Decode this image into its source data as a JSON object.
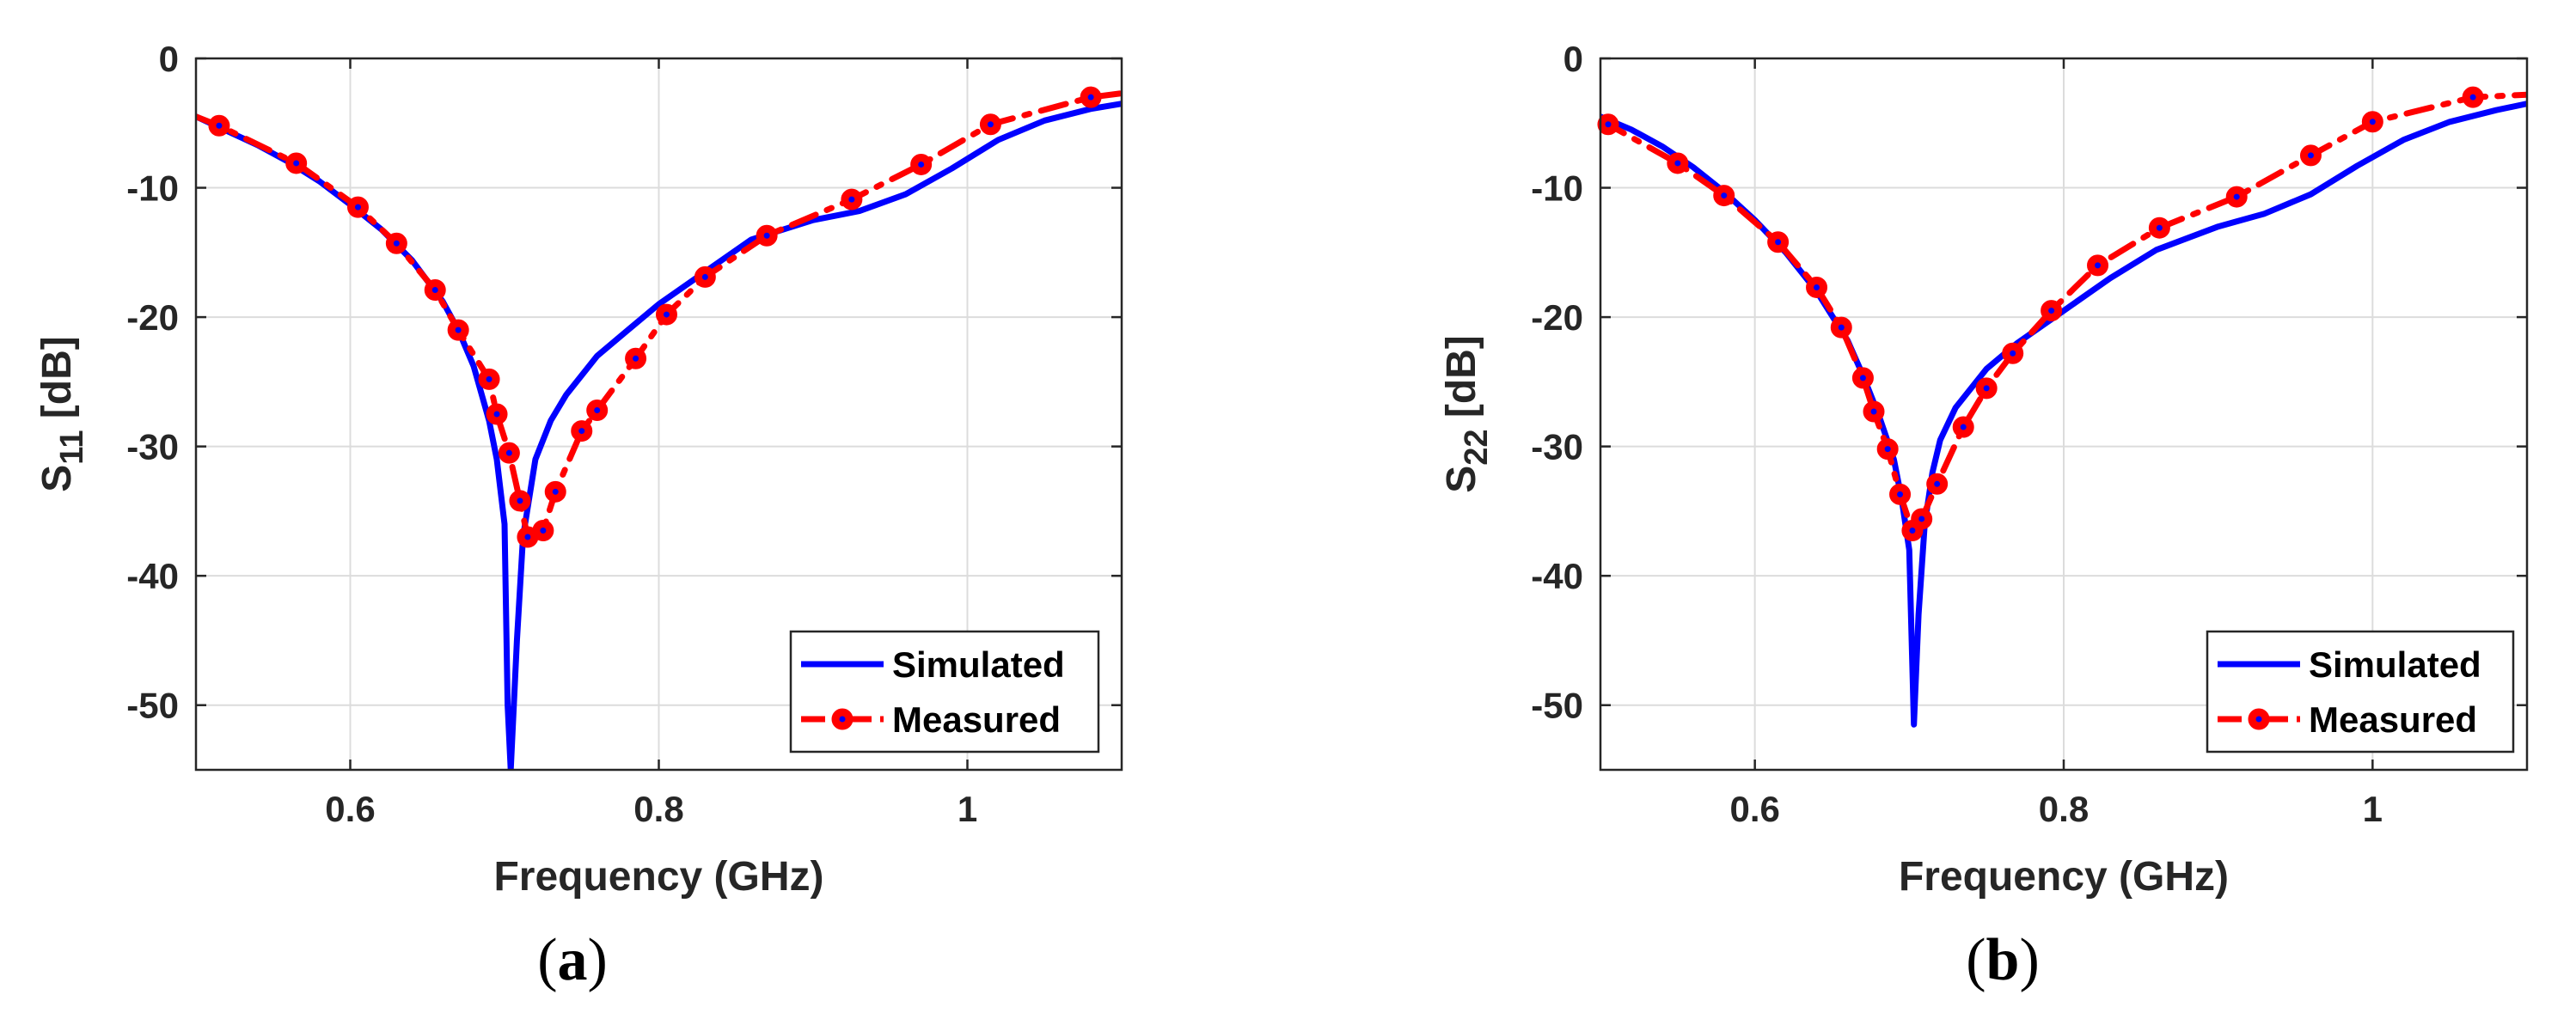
{
  "chart_data": [
    {
      "type": "line",
      "panel": "a",
      "caption": {
        "open": "(",
        "letter": "a",
        "close": ")"
      },
      "xlabel": "Frequency (GHz)",
      "ylabel": {
        "base": "S",
        "sub": "11",
        "unit": " [dB]"
      },
      "xlim": [
        0.5,
        1.1
      ],
      "ylim": [
        -55,
        0
      ],
      "xticks": [
        0.6,
        0.8,
        1.0
      ],
      "xtick_labels": [
        "0.6",
        "0.8",
        "1"
      ],
      "yticks": [
        0,
        -10,
        -20,
        -30,
        -40,
        -50
      ],
      "ytick_labels": [
        "0",
        "-10",
        "-20",
        "-30",
        "-40",
        "-50"
      ],
      "grid": true,
      "legend": "bottom-right",
      "series": [
        {
          "name": "Simulated",
          "color": "#0000ff",
          "style": "solid",
          "marker": "none",
          "x": [
            0.5,
            0.52,
            0.54,
            0.56,
            0.58,
            0.6,
            0.62,
            0.64,
            0.66,
            0.67,
            0.68,
            0.69,
            0.695,
            0.7,
            0.702,
            0.704,
            0.708,
            0.712,
            0.72,
            0.73,
            0.74,
            0.76,
            0.78,
            0.8,
            0.83,
            0.86,
            0.9,
            0.93,
            0.96,
            0.99,
            1.02,
            1.05,
            1.08,
            1.1
          ],
          "y": [
            -4.5,
            -5.6,
            -6.7,
            -8.0,
            -9.5,
            -11.3,
            -13.2,
            -15.6,
            -18.8,
            -21.0,
            -23.8,
            -28.0,
            -31.0,
            -36.0,
            -50.0,
            -55.0,
            -45.0,
            -37.0,
            -31.0,
            -28.0,
            -26.0,
            -23.0,
            -21.0,
            -19.0,
            -16.5,
            -14.0,
            -12.5,
            -11.8,
            -10.5,
            -8.5,
            -6.3,
            -4.8,
            -3.9,
            -3.5
          ]
        },
        {
          "name": "Measured",
          "color": "#ff0000",
          "marker_face": "#ff0000",
          "marker_center": "#0000ff",
          "style": "dashdot",
          "marker": "circle",
          "x": [
            0.5,
            0.515,
            0.565,
            0.605,
            0.63,
            0.655,
            0.67,
            0.69,
            0.695,
            0.703,
            0.71,
            0.715,
            0.725,
            0.733,
            0.75,
            0.76,
            0.785,
            0.805,
            0.83,
            0.87,
            0.925,
            0.97,
            1.015,
            1.08,
            1.1
          ],
          "y": [
            -4.5,
            -5.2,
            -8.1,
            -11.5,
            -14.3,
            -17.9,
            -21.0,
            -24.8,
            -27.5,
            -30.5,
            -34.2,
            -37.0,
            -36.5,
            -33.5,
            -28.8,
            -27.2,
            -23.2,
            -19.8,
            -16.9,
            -13.7,
            -10.9,
            -8.2,
            -5.1,
            -3.0,
            -2.7
          ]
        }
      ]
    },
    {
      "type": "line",
      "panel": "b",
      "caption": {
        "open": "(",
        "letter": "b",
        "close": ")"
      },
      "xlabel": "Frequency (GHz)",
      "ylabel": {
        "base": "S",
        "sub": "22",
        "unit": " [dB]"
      },
      "xlim": [
        0.5,
        1.1
      ],
      "ylim": [
        -55,
        0
      ],
      "xticks": [
        0.6,
        0.8,
        1.0
      ],
      "xtick_labels": [
        "0.6",
        "0.8",
        "1"
      ],
      "yticks": [
        0,
        -10,
        -20,
        -30,
        -40,
        -50
      ],
      "ytick_labels": [
        "0",
        "-10",
        "-20",
        "-30",
        "-40",
        "-50"
      ],
      "grid": true,
      "legend": "bottom-right",
      "series": [
        {
          "name": "Simulated",
          "color": "#0000ff",
          "style": "solid",
          "marker": "none",
          "x": [
            0.5,
            0.52,
            0.54,
            0.56,
            0.58,
            0.6,
            0.62,
            0.64,
            0.66,
            0.67,
            0.68,
            0.69,
            0.695,
            0.7,
            0.703,
            0.706,
            0.71,
            0.715,
            0.72,
            0.73,
            0.75,
            0.77,
            0.8,
            0.83,
            0.86,
            0.9,
            0.93,
            0.96,
            0.99,
            1.02,
            1.05,
            1.08,
            1.1
          ],
          "y": [
            -4.5,
            -5.5,
            -6.8,
            -8.4,
            -10.3,
            -12.5,
            -15.0,
            -18.0,
            -21.8,
            -24.5,
            -27.5,
            -31.0,
            -34.0,
            -38.0,
            -51.5,
            -43.0,
            -36.0,
            -32.0,
            -29.5,
            -27.0,
            -24.0,
            -22.0,
            -19.5,
            -17.0,
            -14.8,
            -13.0,
            -12.0,
            -10.5,
            -8.3,
            -6.3,
            -4.9,
            -4.0,
            -3.5
          ]
        },
        {
          "name": "Measured",
          "color": "#ff0000",
          "marker_face": "#ff0000",
          "marker_center": "#0000ff",
          "style": "dashdot",
          "marker": "circle",
          "x": [
            0.5,
            0.505,
            0.55,
            0.58,
            0.615,
            0.64,
            0.656,
            0.67,
            0.677,
            0.686,
            0.694,
            0.702,
            0.708,
            0.718,
            0.735,
            0.75,
            0.767,
            0.792,
            0.822,
            0.862,
            0.912,
            0.96,
            1.0,
            1.065,
            1.1
          ],
          "y": [
            -5.0,
            -5.1,
            -8.1,
            -10.6,
            -14.2,
            -17.7,
            -20.8,
            -24.7,
            -27.3,
            -30.2,
            -33.7,
            -36.5,
            -35.6,
            -32.9,
            -28.5,
            -25.5,
            -22.8,
            -19.5,
            -16.0,
            -13.1,
            -10.7,
            -7.5,
            -4.9,
            -3.0,
            -2.8
          ]
        }
      ]
    }
  ]
}
